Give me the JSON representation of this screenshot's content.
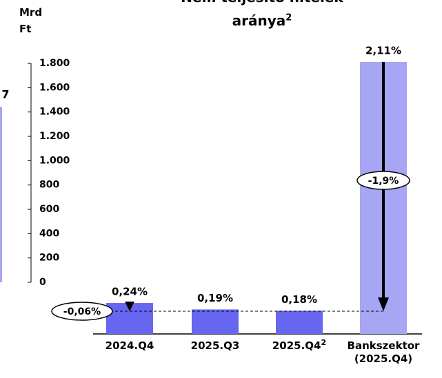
{
  "left_chart": {
    "axis_label": "Mrd Ft",
    "ylim": [
      0,
      1800
    ],
    "yticks": [
      {
        "value": 0,
        "label": "0"
      },
      {
        "value": 200,
        "label": "200"
      },
      {
        "value": 400,
        "label": "400"
      },
      {
        "value": 600,
        "label": "600"
      },
      {
        "value": 800,
        "label": "800"
      },
      {
        "value": 1000,
        "label": "1.000"
      },
      {
        "value": 1200,
        "label": "1.200"
      },
      {
        "value": 1400,
        "label": "1.400"
      },
      {
        "value": 1600,
        "label": "1.600"
      },
      {
        "value": 1800,
        "label": "1.800"
      }
    ],
    "values": [
      1443
    ],
    "color": "#a6a6f5",
    "annotation": "7"
  },
  "chart_data": {
    "type": "bar",
    "title": "Nem teljesítő hitelek",
    "title_line2": "aránya",
    "title_footnote": "2",
    "categories": [
      "2024.Q4",
      "2025.Q3",
      "2025.Q4",
      "Bankszektor (2025.Q4)"
    ],
    "category_footnotes": [
      null,
      null,
      "2",
      null
    ],
    "values": [
      0.24,
      0.19,
      0.18,
      2.11
    ],
    "value_labels": [
      "0,24%",
      "0,19%",
      "0,18%",
      "2,11%"
    ],
    "colors": [
      "#6666f0",
      "#6666f0",
      "#6666f0",
      "#a6a6f5"
    ],
    "ylim": [
      0,
      2.11
    ],
    "annotations": [
      {
        "text": "-0,06%"
      },
      {
        "text": "-1,9%"
      }
    ]
  }
}
